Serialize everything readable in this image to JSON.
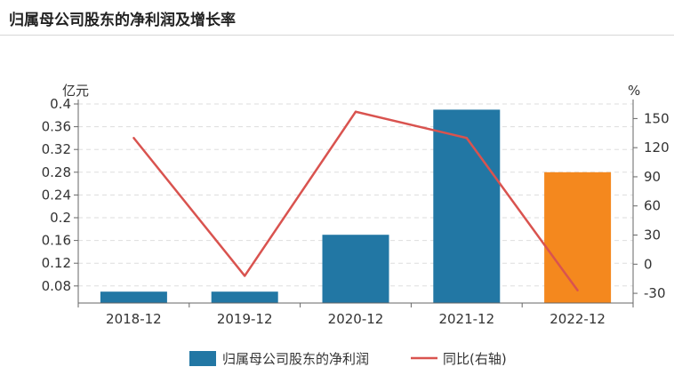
{
  "header": {
    "title": "归属母公司股东的净利润及增长率"
  },
  "chart_data": {
    "type": "bar",
    "categories": [
      "2018-12",
      "2019-12",
      "2020-12",
      "2021-12",
      "2022-12"
    ],
    "series": [
      {
        "name": "归属母公司股东的净利润",
        "type": "bar",
        "axis": "left",
        "values": [
          0.07,
          0.07,
          0.17,
          0.39,
          0.28
        ],
        "colors": [
          "#2277a4",
          "#2277a4",
          "#2277a4",
          "#2277a4",
          "#f4881e"
        ]
      },
      {
        "name": "同比(右轴)",
        "type": "line",
        "axis": "right",
        "values": [
          130,
          -12,
          157,
          130,
          -27
        ],
        "color": "#d9534f"
      }
    ],
    "left_axis": {
      "unit": "亿元",
      "ticks": [
        "0.08",
        "0.12",
        "0.16",
        "0.2",
        "0.24",
        "0.28",
        "0.32",
        "0.36",
        "0.4"
      ],
      "ylim": [
        0.05,
        0.4
      ]
    },
    "right_axis": {
      "unit": "%",
      "ticks": [
        "-30",
        "0",
        "30",
        "60",
        "90",
        "120",
        "150"
      ],
      "ylim": [
        -40,
        165
      ]
    },
    "grid": true,
    "legend_position": "bottom"
  }
}
